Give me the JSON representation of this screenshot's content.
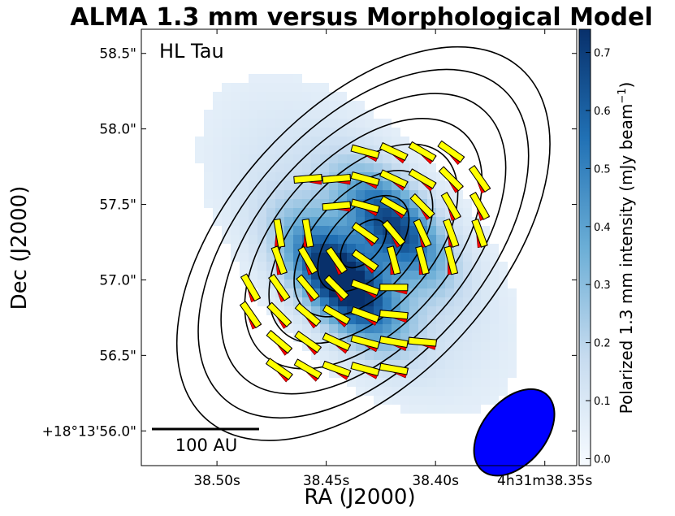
{
  "chart_data": {
    "type": "heatmap",
    "title": "ALMA 1.3 mm versus Morphological Model",
    "source_label": "HL Tau",
    "xlabel": "RA (J2000)",
    "ylabel": "Dec (J2000)",
    "xlim": [
      38.5346,
      38.3354
    ],
    "ylim": [
      55.77,
      58.66
    ],
    "xticks": [
      {
        "value": 38.5,
        "label": "38.50s"
      },
      {
        "value": 38.45,
        "label": "38.45s"
      },
      {
        "value": 38.4,
        "label": "38.40s"
      },
      {
        "value": 38.35,
        "label": "4h31m38.35s"
      }
    ],
    "yticks": [
      {
        "value": 58.5,
        "label": "58.5\""
      },
      {
        "value": 58.0,
        "label": "58.0\""
      },
      {
        "value": 57.5,
        "label": "57.5\""
      },
      {
        "value": 57.0,
        "label": "57.0\""
      },
      {
        "value": 56.5,
        "label": "56.5\""
      },
      {
        "value": 56.0,
        "label": "+18°13'56.0\""
      }
    ],
    "colorbar": {
      "label": "Polarized 1.3 mm intensity (mJy beam⁻¹)",
      "label_main": "Polarized 1.3 mm intensity (mJy beam",
      "label_sup": "−1",
      "label_end": ")",
      "range": [
        -0.012,
        0.74
      ],
      "colormap": "Blues",
      "ticks": [
        "0.0",
        "0.1",
        "0.2",
        "0.3",
        "0.4",
        "0.5",
        "0.6",
        "0.7"
      ]
    },
    "intensity_components": [
      {
        "ra": 38.4426,
        "dec": 56.99,
        "peak": 0.74,
        "sigma_major": 0.32,
        "sigma_minor": 0.16
      },
      {
        "ra": 38.419,
        "dec": 57.36,
        "peak": 0.55,
        "sigma_major": 0.3,
        "sigma_minor": 0.15
      },
      {
        "ra": 38.4348,
        "dec": 57.23,
        "peak": 0.17,
        "sigma_major": 0.95,
        "sigma_minor": 0.5
      }
    ],
    "contours": {
      "center_ra": 38.433,
      "center_dec": 57.24,
      "pa_deg": 138,
      "semi_major_arcsec": [
        1.56,
        1.38,
        1.19,
        0.99,
        0.79,
        0.58,
        0.38,
        0.19
      ],
      "semi_minor_arcsec": [
        0.89,
        0.79,
        0.68,
        0.57,
        0.45,
        0.33,
        0.22,
        0.11
      ],
      "color": "#000000"
    },
    "vectors_color_observed": "#ffff00",
    "vectors_color_model": "#ff0000",
    "vectors": [
      [
        38.4322,
        57.85,
        75
      ],
      [
        38.4191,
        57.85,
        65
      ],
      [
        38.406,
        57.85,
        60
      ],
      [
        38.3929,
        57.85,
        55
      ],
      [
        38.4584,
        57.67,
        95
      ],
      [
        38.4453,
        57.67,
        95
      ],
      [
        38.4322,
        57.67,
        75
      ],
      [
        38.4191,
        57.67,
        65
      ],
      [
        38.406,
        57.67,
        60
      ],
      [
        38.3929,
        57.67,
        45
      ],
      [
        38.3798,
        57.67,
        35
      ],
      [
        38.4453,
        57.49,
        95
      ],
      [
        38.4322,
        57.49,
        75
      ],
      [
        38.4191,
        57.49,
        60
      ],
      [
        38.406,
        57.49,
        45
      ],
      [
        38.3929,
        57.49,
        30
      ],
      [
        38.3798,
        57.49,
        30
      ],
      [
        38.4715,
        57.31,
        10
      ],
      [
        38.4584,
        57.31,
        10
      ],
      [
        38.4322,
        57.31,
        55
      ],
      [
        38.4191,
        57.31,
        40
      ],
      [
        38.406,
        57.31,
        25
      ],
      [
        38.3929,
        57.31,
        20
      ],
      [
        38.3798,
        57.31,
        20
      ],
      [
        38.4715,
        57.13,
        20
      ],
      [
        38.4584,
        57.13,
        30
      ],
      [
        38.4453,
        57.13,
        35
      ],
      [
        38.4322,
        57.13,
        55
      ],
      [
        38.4191,
        57.13,
        15
      ],
      [
        38.406,
        57.13,
        15
      ],
      [
        38.3929,
        57.13,
        15
      ],
      [
        38.4846,
        56.95,
        30
      ],
      [
        38.4715,
        56.95,
        35
      ],
      [
        38.4584,
        56.95,
        40
      ],
      [
        38.4453,
        56.95,
        45
      ],
      [
        38.4322,
        56.95,
        70
      ],
      [
        38.4191,
        56.95,
        90
      ],
      [
        38.4846,
        56.77,
        35
      ],
      [
        38.4715,
        56.77,
        45
      ],
      [
        38.4584,
        56.77,
        50
      ],
      [
        38.4453,
        56.77,
        60
      ],
      [
        38.4322,
        56.77,
        70
      ],
      [
        38.4191,
        56.77,
        85
      ],
      [
        38.4715,
        56.59,
        50
      ],
      [
        38.4584,
        56.59,
        55
      ],
      [
        38.4453,
        56.59,
        65
      ],
      [
        38.4322,
        56.59,
        75
      ],
      [
        38.4191,
        56.59,
        80
      ],
      [
        38.406,
        56.59,
        85
      ],
      [
        38.4715,
        56.41,
        55
      ],
      [
        38.4584,
        56.41,
        60
      ],
      [
        38.4453,
        56.41,
        70
      ],
      [
        38.4322,
        56.41,
        75
      ],
      [
        38.4191,
        56.41,
        80
      ]
    ],
    "beam": {
      "ra": 38.364,
      "dec": 55.99,
      "major_arcsec": 0.33,
      "minor_arcsec": 0.21,
      "pa_deg": 140,
      "color": "#0000ff"
    },
    "scale_bar": {
      "label": "100 AU",
      "length_arcsec": 0.71
    }
  }
}
